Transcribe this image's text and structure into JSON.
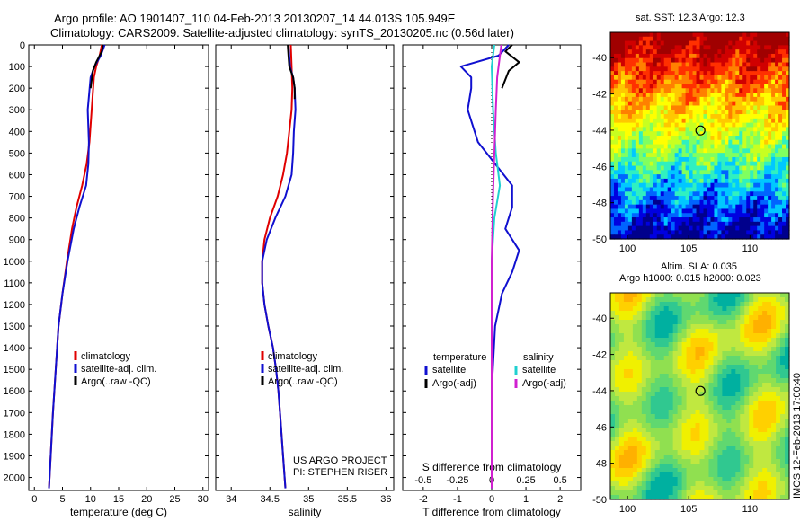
{
  "header": {
    "line1": "Argo profile: AO 1901407_110 04-Feb-2013 20130207_14 44.013S 105.949E",
    "line2": "Climatology: CARS2009. Satellite-adjusted climatology: synTS_20130205.nc (0.56d later)"
  },
  "colors": {
    "climatology": "#e00000",
    "satellite": "#1010d0",
    "argo": "#000000",
    "argo_sal_adj": "#d020d0",
    "satellite_sal": "#20d0d0"
  },
  "chart_data": [
    {
      "type": "line",
      "name": "temperature-profile",
      "xlabel": "temperature (deg C)",
      "ylabel": "",
      "xlim": [
        -1,
        31
      ],
      "ylim": [
        2060,
        0
      ],
      "xticks": [
        0,
        5,
        10,
        15,
        20,
        25,
        30
      ],
      "yticks": [
        0,
        100,
        200,
        300,
        400,
        500,
        600,
        700,
        800,
        900,
        1000,
        1100,
        1200,
        1300,
        1400,
        1500,
        1600,
        1700,
        1800,
        1900,
        2000
      ],
      "legend": [
        "climatology",
        "satellite-adj. clim.",
        "Argo(..raw -QC)"
      ],
      "legend_position": "bottom-center",
      "series": [
        {
          "name": "climatology",
          "color": "#e00000",
          "points": [
            [
              12.0,
              0
            ],
            [
              11.6,
              50
            ],
            [
              11.0,
              100
            ],
            [
              10.6,
              150
            ],
            [
              10.2,
              300
            ],
            [
              9.8,
              450
            ],
            [
              9.3,
              550
            ],
            [
              8.5,
              650
            ],
            [
              7.5,
              750
            ],
            [
              6.7,
              850
            ],
            [
              5.8,
              1000
            ],
            [
              5.0,
              1150
            ],
            [
              4.3,
              1300
            ],
            [
              3.8,
              1500
            ],
            [
              3.3,
              1700
            ],
            [
              2.9,
              1900
            ],
            [
              2.6,
              2050
            ]
          ]
        },
        {
          "name": "satellite-adj. clim.",
          "color": "#1010d0",
          "points": [
            [
              12.5,
              0
            ],
            [
              11.8,
              50
            ],
            [
              10.7,
              100
            ],
            [
              10.0,
              150
            ],
            [
              9.5,
              300
            ],
            [
              9.7,
              450
            ],
            [
              9.6,
              550
            ],
            [
              9.2,
              650
            ],
            [
              8.0,
              750
            ],
            [
              7.0,
              850
            ],
            [
              5.9,
              1000
            ],
            [
              5.0,
              1150
            ],
            [
              4.3,
              1300
            ],
            [
              3.8,
              1500
            ],
            [
              3.3,
              1700
            ],
            [
              2.9,
              1900
            ],
            [
              2.6,
              2050
            ]
          ]
        },
        {
          "name": "Argo(..raw -QC)",
          "color": "#000000",
          "points": [
            [
              12.2,
              0
            ],
            [
              12.0,
              30
            ],
            [
              11.0,
              80
            ],
            [
              10.4,
              120
            ],
            [
              10.0,
              200
            ]
          ]
        }
      ]
    },
    {
      "type": "line",
      "name": "salinity-profile",
      "xlabel": "salinity",
      "ylabel": "",
      "xlim": [
        33.8,
        36.1
      ],
      "ylim": [
        2060,
        0
      ],
      "xticks": [
        34,
        34.5,
        35,
        35.5,
        36
      ],
      "legend": [
        "climatology",
        "satellite-adj. clim.",
        "Argo(..raw -QC)"
      ],
      "legend_position": "bottom-center",
      "annotations": [
        "US ARGO PROJECT",
        "PI: STEPHEN RISER"
      ],
      "series": [
        {
          "name": "climatology",
          "color": "#e00000",
          "points": [
            [
              34.77,
              0
            ],
            [
              34.78,
              100
            ],
            [
              34.79,
              200
            ],
            [
              34.78,
              300
            ],
            [
              34.75,
              400
            ],
            [
              34.72,
              500
            ],
            [
              34.67,
              600
            ],
            [
              34.6,
              700
            ],
            [
              34.5,
              800
            ],
            [
              34.43,
              900
            ],
            [
              34.4,
              1000
            ],
            [
              34.4,
              1100
            ],
            [
              34.43,
              1200
            ],
            [
              34.48,
              1300
            ],
            [
              34.54,
              1400
            ],
            [
              34.58,
              1500
            ],
            [
              34.61,
              1600
            ],
            [
              34.63,
              1700
            ],
            [
              34.65,
              1800
            ],
            [
              34.67,
              1900
            ],
            [
              34.7,
              2050
            ]
          ]
        },
        {
          "name": "satellite-adj. clim.",
          "color": "#1010d0",
          "points": [
            [
              34.74,
              0
            ],
            [
              34.76,
              100
            ],
            [
              34.8,
              150
            ],
            [
              34.82,
              200
            ],
            [
              34.83,
              300
            ],
            [
              34.81,
              400
            ],
            [
              34.8,
              500
            ],
            [
              34.78,
              600
            ],
            [
              34.7,
              700
            ],
            [
              34.57,
              800
            ],
            [
              34.46,
              900
            ],
            [
              34.4,
              1000
            ],
            [
              34.4,
              1100
            ],
            [
              34.43,
              1200
            ],
            [
              34.48,
              1300
            ],
            [
              34.54,
              1400
            ],
            [
              34.58,
              1500
            ],
            [
              34.61,
              1600
            ],
            [
              34.63,
              1700
            ],
            [
              34.65,
              1800
            ],
            [
              34.67,
              1900
            ],
            [
              34.7,
              2050
            ]
          ]
        },
        {
          "name": "Argo(..raw -QC)",
          "color": "#000000",
          "points": [
            [
              34.73,
              0
            ],
            [
              34.74,
              50
            ],
            [
              34.75,
              100
            ],
            [
              34.8,
              150
            ],
            [
              34.82,
              200
            ],
            [
              34.82,
              250
            ]
          ]
        }
      ]
    },
    {
      "type": "line",
      "name": "difference-profile",
      "xlabel": "T difference from climatology",
      "x2label": "S difference from climatology",
      "ylabel": "",
      "xlim": [
        -2.6,
        2.6
      ],
      "x2lim": [
        -0.65,
        0.65
      ],
      "ylim": [
        2060,
        0
      ],
      "xticks": [
        -2,
        -1,
        0,
        1,
        2
      ],
      "x2ticks": [
        -0.5,
        -0.25,
        0,
        0.25,
        0.5
      ],
      "x2ticklabels": [
        "-0.5",
        "-0.25",
        "0",
        "0.25",
        "0.5"
      ],
      "legend_headers": [
        "temperature",
        "salinity"
      ],
      "legend": [
        "satellite",
        "Argo(-adj)",
        "satellite",
        "Argo(-adj)"
      ],
      "legend_position": "bottom-center",
      "series": [
        {
          "name": "T satellite",
          "color": "#1010d0",
          "axis": "T",
          "points": [
            [
              0.5,
              0
            ],
            [
              0.2,
              50
            ],
            [
              -0.9,
              100
            ],
            [
              -0.6,
              150
            ],
            [
              -0.6,
              200
            ],
            [
              -0.7,
              300
            ],
            [
              -0.4,
              450
            ],
            [
              0.1,
              550
            ],
            [
              0.6,
              650
            ],
            [
              0.6,
              750
            ],
            [
              0.4,
              850
            ],
            [
              0.8,
              950
            ],
            [
              0.6,
              1050
            ],
            [
              0.3,
              1150
            ],
            [
              0.1,
              1300
            ],
            [
              0.0,
              1600
            ],
            [
              0.0,
              2050
            ]
          ]
        },
        {
          "name": "T Argo(-adj)",
          "color": "#000000",
          "axis": "T",
          "points": [
            [
              0.6,
              0
            ],
            [
              0.4,
              30
            ],
            [
              0.8,
              80
            ],
            [
              0.5,
              120
            ],
            [
              0.3,
              200
            ]
          ]
        },
        {
          "name": "S satellite",
          "color": "#20d0d0",
          "axis": "S",
          "points": [
            [
              0.02,
              0
            ],
            [
              0.0,
              100
            ],
            [
              0.01,
              300
            ],
            [
              0.03,
              500
            ],
            [
              0.06,
              650
            ],
            [
              0.02,
              800
            ],
            [
              0.0,
              1000
            ],
            [
              0.0,
              2050
            ]
          ]
        },
        {
          "name": "S Argo(-adj)",
          "color": "#d020d0",
          "axis": "S",
          "points": [
            [
              0.07,
              0
            ],
            [
              0.04,
              150
            ],
            [
              0.03,
              300
            ],
            [
              0.02,
              500
            ],
            [
              0.01,
              700
            ],
            [
              0.0,
              1000
            ],
            [
              0.0,
              2050
            ]
          ]
        }
      ]
    },
    {
      "type": "heatmap",
      "name": "sst-map",
      "title": "sat. SST: 12.3 Argo: 12.3",
      "xlim": [
        98.6,
        113.2
      ],
      "ylim": [
        -50,
        -38.6
      ],
      "xticks": [
        100,
        105,
        110
      ],
      "yticks": [
        -40,
        -42,
        -44,
        -46,
        -48,
        -50
      ],
      "marker": {
        "lon": 105.949,
        "lat": -44.013
      }
    },
    {
      "type": "heatmap",
      "name": "sla-map",
      "title": "Altim. SLA: 0.035",
      "subtitle": "Argo h1000: 0.015 h2000: 0.023",
      "xlim": [
        98.6,
        113.2
      ],
      "ylim": [
        -50,
        -38.6
      ],
      "xticks": [
        100,
        105,
        110
      ],
      "yticks": [
        -40,
        -42,
        -44,
        -46,
        -48,
        -50
      ],
      "marker": {
        "lon": 105.949,
        "lat": -44.013
      }
    }
  ],
  "credit": "IMOS 12-Feb-2013 17:00:40"
}
